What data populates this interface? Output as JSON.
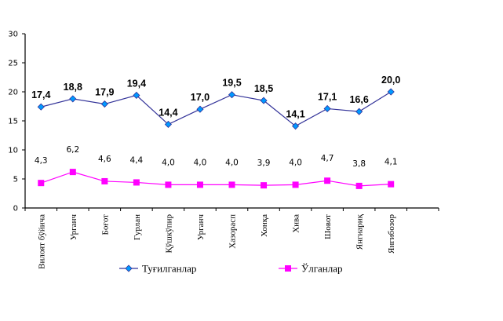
{
  "chart_data": {
    "type": "line",
    "title": "",
    "xlabel": "",
    "ylabel": "",
    "ylim": [
      0,
      30
    ],
    "yticks": [
      0,
      5,
      10,
      15,
      20,
      25,
      30
    ],
    "grid": false,
    "legend_position": "bottom",
    "categories": [
      "Вилоят бўйича",
      "Урганч",
      "Боғот",
      "Гурлан",
      "Қўшкўпир",
      "Урганч",
      "Хазорасп",
      "Хонқа",
      "Хива",
      "Шовот",
      "Янгиариқ",
      "Янгибозор"
    ],
    "series": [
      {
        "name": "Туғилганлар",
        "color": "#333399",
        "marker": "diamond",
        "marker_color": "#0099FF",
        "values": [
          17.4,
          18.8,
          17.9,
          19.4,
          14.4,
          17.0,
          19.5,
          18.5,
          14.1,
          17.1,
          16.6,
          20.0
        ],
        "labels": [
          "17,4",
          "18,8",
          "17,9",
          "19,4",
          "14,4",
          "17,0",
          "19,5",
          "18,5",
          "14,1",
          "17,1",
          "16,6",
          "20,0"
        ]
      },
      {
        "name": "Ўлганлар",
        "color": "#FF00FF",
        "marker": "square",
        "marker_color": "#FF00FF",
        "values": [
          4.3,
          6.2,
          4.6,
          4.4,
          4.0,
          4.0,
          4.0,
          3.9,
          4.0,
          4.7,
          3.8,
          4.1
        ],
        "labels": [
          "4,3",
          "6,2",
          "4,6",
          "4,4",
          "4,0",
          "4,0",
          "4,0",
          "3,9",
          "4,0",
          "4,7",
          "3,8",
          "4,1"
        ]
      }
    ]
  }
}
